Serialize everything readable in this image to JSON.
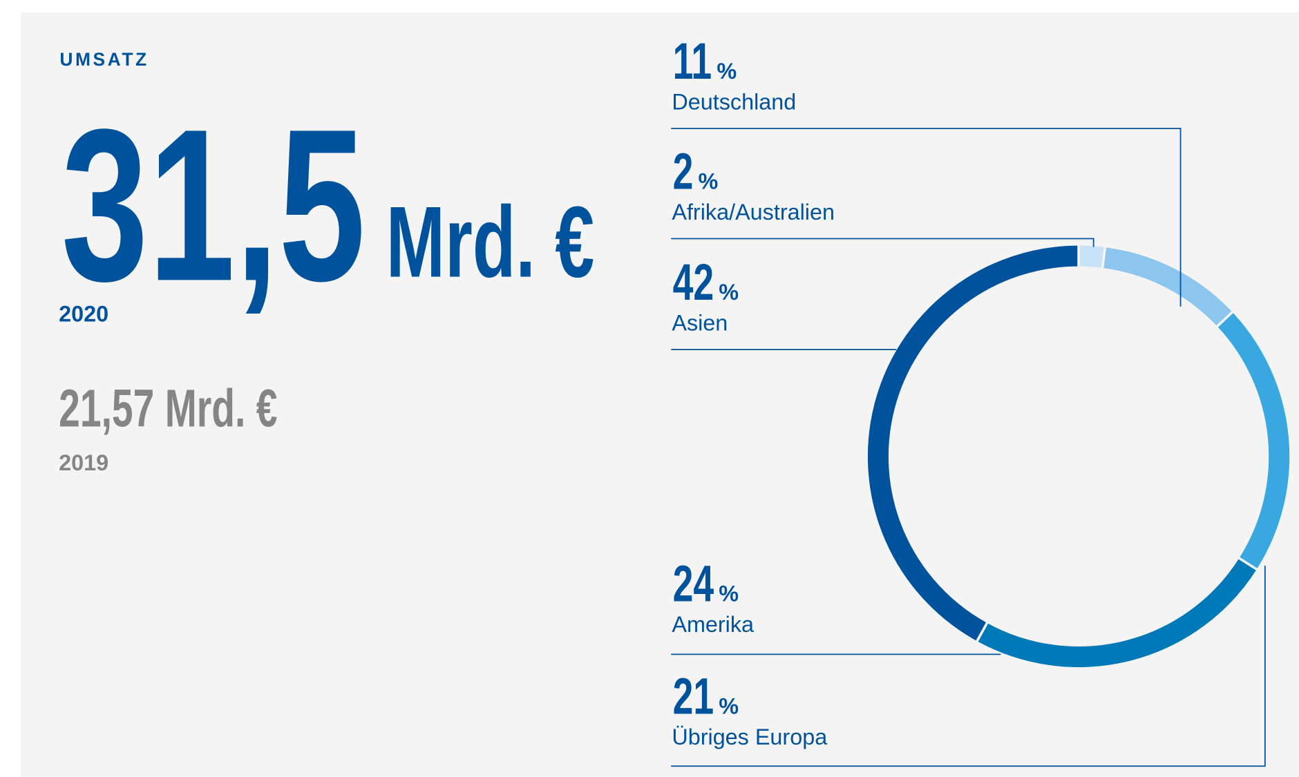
{
  "header": {
    "label": "UMSATZ",
    "value": "31,5",
    "unit": "Mrd. €",
    "year": "2020",
    "previous": "21,57 Mrd. €",
    "previous_year": "2019"
  },
  "chart_data": {
    "type": "donut",
    "categories": [
      "Afrika/Australien",
      "Deutschland",
      "Übriges Europa",
      "Amerika",
      "Asien"
    ],
    "values": [
      2,
      11,
      21,
      24,
      42
    ],
    "unit": "%",
    "colors": [
      "#c7e1f6",
      "#8cc5ee",
      "#39a7e0",
      "#0079b8",
      "#00529c"
    ]
  }
}
